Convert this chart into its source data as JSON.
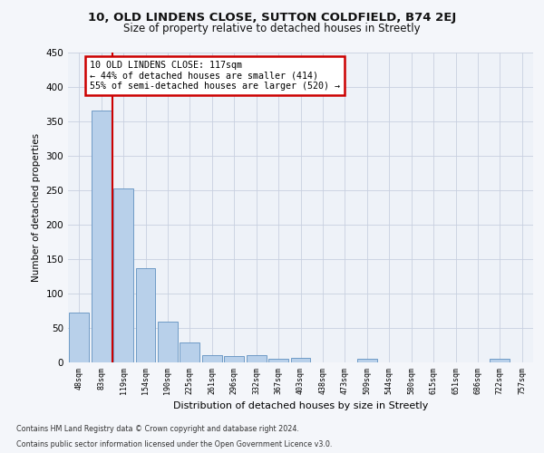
{
  "title1": "10, OLD LINDENS CLOSE, SUTTON COLDFIELD, B74 2EJ",
  "title2": "Size of property relative to detached houses in Streetly",
  "xlabel": "Distribution of detached houses by size in Streetly",
  "ylabel": "Number of detached properties",
  "bar_labels": [
    "48sqm",
    "83sqm",
    "119sqm",
    "154sqm",
    "190sqm",
    "225sqm",
    "261sqm",
    "296sqm",
    "332sqm",
    "367sqm",
    "403sqm",
    "438sqm",
    "473sqm",
    "509sqm",
    "544sqm",
    "580sqm",
    "615sqm",
    "651sqm",
    "686sqm",
    "722sqm",
    "757sqm"
  ],
  "bar_values": [
    72,
    365,
    252,
    137,
    59,
    29,
    10,
    9,
    10,
    5,
    6,
    0,
    0,
    5,
    0,
    0,
    0,
    0,
    0,
    5,
    0
  ],
  "bar_color": "#b8d0ea",
  "bar_edge_color": "#6090c0",
  "annotation_line1": "10 OLD LINDENS CLOSE: 117sqm",
  "annotation_line2": "← 44% of detached houses are smaller (414)",
  "annotation_line3": "55% of semi-detached houses are larger (520) →",
  "annotation_box_color": "#ffffff",
  "annotation_box_edge": "#cc0000",
  "vline_color": "#cc0000",
  "ylim": [
    0,
    450
  ],
  "yticks": [
    0,
    50,
    100,
    150,
    200,
    250,
    300,
    350,
    400,
    450
  ],
  "footer1": "Contains HM Land Registry data © Crown copyright and database right 2024.",
  "footer2": "Contains public sector information licensed under the Open Government Licence v3.0.",
  "bg_color": "#eef2f8",
  "grid_color": "#c8d0e0",
  "fig_bg": "#f4f6fa"
}
